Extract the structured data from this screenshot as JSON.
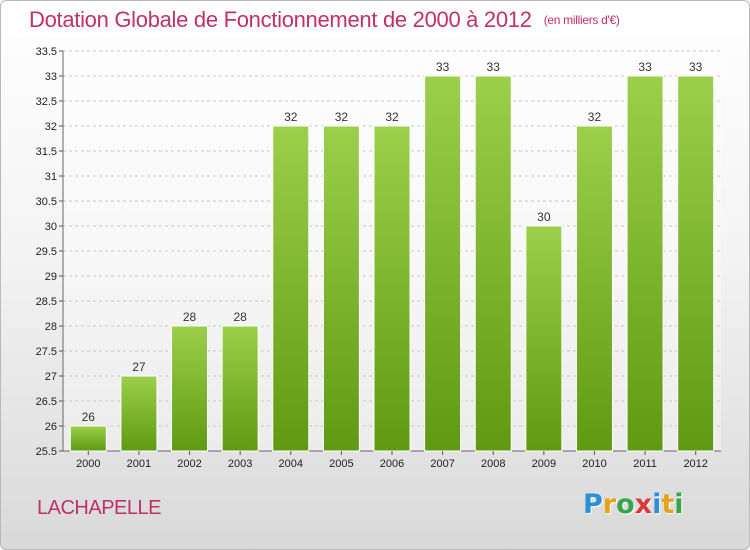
{
  "header": {
    "title": "Dotation Globale de Fonctionnement de 2000 à 2012",
    "subtitle": "(en milliers d'€)"
  },
  "commune": "LACHAPELLE",
  "logo": {
    "letters": [
      "P",
      "r",
      "o",
      "x",
      "i",
      "t",
      "i"
    ],
    "colors": [
      "#2f8fd6",
      "#e8a21a",
      "#3aa44a",
      "#d83a3a",
      "#2f8fd6",
      "#e8a21a",
      "#3aa44a"
    ]
  },
  "chart_data": {
    "type": "bar",
    "categories": [
      "2000",
      "2001",
      "2002",
      "2003",
      "2004",
      "2005",
      "2006",
      "2007",
      "2008",
      "2009",
      "2010",
      "2011",
      "2012"
    ],
    "values": [
      26,
      27,
      28,
      28,
      32,
      32,
      32,
      33,
      33,
      30,
      32,
      33,
      33
    ],
    "value_labels": [
      "26",
      "27",
      "28",
      "28",
      "32",
      "32",
      "32",
      "33",
      "33",
      "30",
      "32",
      "33",
      "33"
    ],
    "ylim": [
      25.5,
      33.5
    ],
    "yticks": [
      25.5,
      26,
      26.5,
      27,
      27.5,
      28,
      28.5,
      29,
      29.5,
      30,
      30.5,
      31,
      31.5,
      32,
      32.5,
      33,
      33.5
    ],
    "ytick_labels": [
      "25.5",
      "26",
      "26.5",
      "27",
      "27.5",
      "28",
      "28.5",
      "29",
      "29.5",
      "30",
      "30.5",
      "31",
      "31.5",
      "32",
      "32.5",
      "33",
      "33.5"
    ],
    "grid": true,
    "bar_color": "#7dbb2c",
    "xlabel": "",
    "ylabel": ""
  }
}
